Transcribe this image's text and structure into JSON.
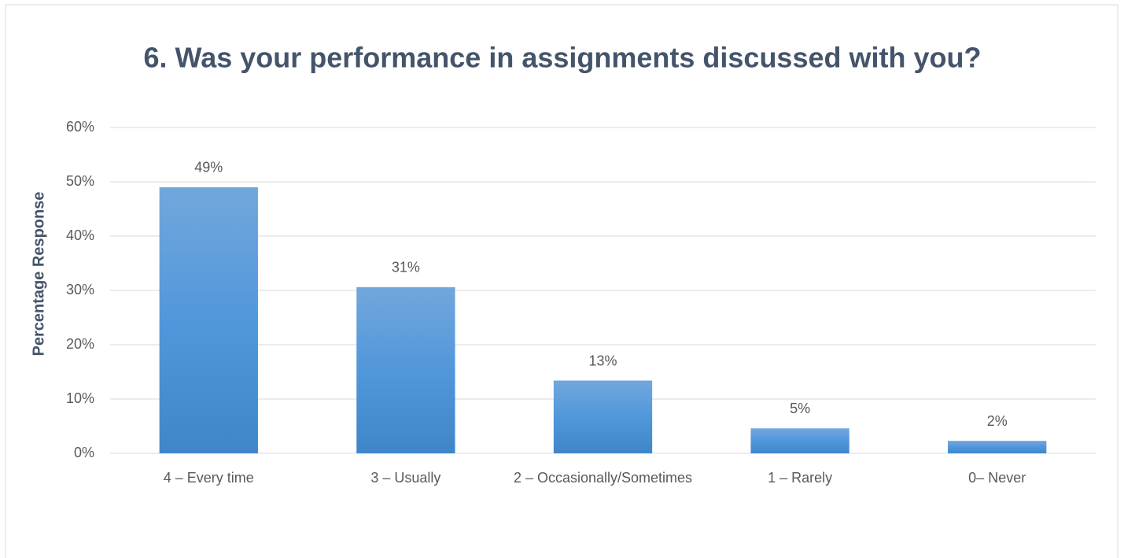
{
  "chart_data": {
    "type": "bar",
    "title": "6. Was your performance in assignments discussed with you?",
    "y_label": "Percentage Response",
    "categories": [
      "4 – Every time",
      "3 – Usually",
      "2 – Occasionally/Sometimes",
      "1 – Rarely",
      "0– Never"
    ],
    "values": [
      49,
      30.6,
      13.4,
      4.6,
      2.3
    ],
    "value_labels": [
      "49%",
      "31%",
      "13%",
      "5%",
      "2%"
    ],
    "color": "#5b9bd5",
    "ylim": [
      0,
      60
    ],
    "yticks": [
      {
        "value": 0,
        "label": "0%"
      },
      {
        "value": 10,
        "label": "10%"
      },
      {
        "value": 20,
        "label": "20%"
      },
      {
        "value": 30,
        "label": "30%"
      },
      {
        "value": 40,
        "label": "40%"
      },
      {
        "value": 50,
        "label": "50%"
      },
      {
        "value": 60,
        "label": "60%"
      }
    ],
    "grid": true
  }
}
